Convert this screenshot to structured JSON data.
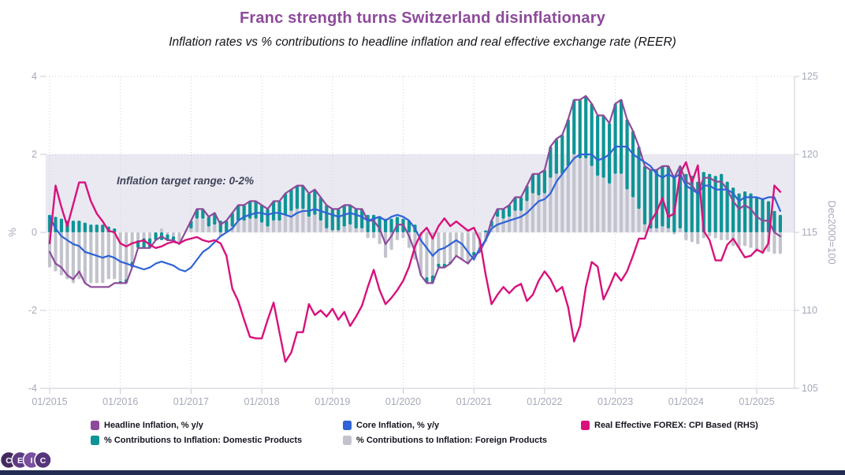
{
  "title": "Franc strength turns Switzerland disinflationary",
  "subtitle": "Inflation rates vs % contributions to headline inflation and real effective exchange rate (REER)",
  "annotation": "Inflation target range: 0-2%",
  "colors": {
    "title": "#8d4a9b",
    "band": "#eae9f1",
    "grid": "#cfd0da",
    "axis_line": "#c9cbd5",
    "tick_text": "#a6aab9",
    "footer": "#232c52",
    "headline": "#8d4a9b",
    "core": "#2f63d6",
    "domestic": "#0e9496",
    "foreign": "#c2c3cd",
    "forex": "#d8117c"
  },
  "legend": {
    "items": [
      {
        "label": "Headline Inflation, % y/y",
        "color": "#8d4a9b",
        "row": 0,
        "col": 0
      },
      {
        "label": "Core Inflation, % y/y",
        "color": "#2f63d6",
        "row": 0,
        "col": 1
      },
      {
        "label": "Real Effective FOREX: CPI Based (RHS)",
        "color": "#d8117c",
        "row": 0,
        "col": 2
      },
      {
        "label": "% Contributions to Inflation: Domestic Products",
        "color": "#0e9496",
        "row": 1,
        "col": 0
      },
      {
        "label": "% Contributions to Inflation: Foreign Products",
        "color": "#c2c3cd",
        "row": 1,
        "col": 1
      }
    ]
  },
  "logo": {
    "letters": [
      "C",
      "E",
      "I",
      "C"
    ],
    "circle_colors": [
      "#432a5e",
      "#5d3b85",
      "#7950a0",
      "#55357b"
    ]
  },
  "chart_data": {
    "type": "combo: stacked monthly bars + lines, dual y-axis",
    "x_start": "2015-01",
    "x_freq": "monthly",
    "x_points": 125,
    "x_tick_labels": [
      "01/2015",
      "01/2016",
      "01/2017",
      "01/2018",
      "01/2019",
      "01/2020",
      "01/2021",
      "01/2022",
      "01/2023",
      "01/2024",
      "01/2025"
    ],
    "x_tick_indices": [
      0,
      12,
      24,
      36,
      48,
      60,
      72,
      84,
      96,
      108,
      120
    ],
    "y_left": {
      "label": "%",
      "ticks": [
        4,
        2,
        0,
        -2,
        -4
      ],
      "range": [
        -4,
        4
      ],
      "grid": true
    },
    "y_right": {
      "label": "Dec2000=100",
      "ticks": [
        125,
        120,
        115,
        110,
        105
      ],
      "range": [
        105,
        125
      ]
    },
    "target_band": {
      "from": 0,
      "to": 2,
      "note": "Inflation target range: 0-2%"
    },
    "series": [
      {
        "name": "Headline Inflation, % y/y",
        "type": "line",
        "axis": "left",
        "color": "#8d4a9b",
        "values": [
          -0.5,
          -0.8,
          -0.9,
          -1.1,
          -1.2,
          -1.0,
          -1.3,
          -1.4,
          -1.4,
          -1.4,
          -1.4,
          -1.3,
          -1.3,
          -1.3,
          -0.9,
          -0.4,
          -0.4,
          -0.4,
          -0.2,
          -0.1,
          -0.2,
          -0.2,
          -0.3,
          0.0,
          0.3,
          0.6,
          0.6,
          0.4,
          0.5,
          0.2,
          0.3,
          0.5,
          0.7,
          0.7,
          0.8,
          0.8,
          0.7,
          0.6,
          0.8,
          0.8,
          1.0,
          1.1,
          1.2,
          1.2,
          1.0,
          1.1,
          0.9,
          0.7,
          0.6,
          0.6,
          0.7,
          0.7,
          0.6,
          0.6,
          0.3,
          0.3,
          0.1,
          -0.3,
          -0.1,
          0.2,
          0.2,
          -0.1,
          -0.5,
          -1.1,
          -1.3,
          -1.3,
          -0.9,
          -0.9,
          -0.8,
          -0.6,
          -0.7,
          -0.8,
          -0.6,
          -0.5,
          -0.2,
          0.3,
          0.6,
          0.6,
          0.7,
          0.9,
          0.9,
          1.2,
          1.5,
          1.5,
          1.6,
          2.2,
          2.4,
          2.5,
          2.9,
          3.4,
          3.4,
          3.5,
          3.3,
          3.0,
          3.0,
          2.8,
          3.3,
          3.4,
          2.9,
          2.6,
          2.2,
          1.7,
          1.6,
          1.6,
          1.7,
          1.7,
          1.4,
          1.7,
          1.3,
          1.2,
          1.0,
          1.4,
          1.4,
          1.3,
          1.3,
          1.1,
          0.8,
          0.6,
          0.7,
          0.6,
          0.4,
          0.3,
          0.3,
          0.0,
          -0.1
        ]
      },
      {
        "name": "Core Inflation, % y/y",
        "type": "line",
        "axis": "left",
        "color": "#2f63d6",
        "values": [
          0.4,
          0.1,
          -0.1,
          -0.2,
          -0.3,
          -0.35,
          -0.5,
          -0.55,
          -0.6,
          -0.65,
          -0.6,
          -0.65,
          -0.75,
          -0.8,
          -0.85,
          -0.9,
          -0.95,
          -0.9,
          -0.8,
          -0.75,
          -0.8,
          -0.85,
          -0.95,
          -1.0,
          -0.9,
          -0.7,
          -0.5,
          -0.4,
          -0.25,
          -0.1,
          0.0,
          0.1,
          0.3,
          0.4,
          0.45,
          0.5,
          0.5,
          0.45,
          0.5,
          0.5,
          0.45,
          0.4,
          0.5,
          0.55,
          0.55,
          0.6,
          0.55,
          0.5,
          0.45,
          0.4,
          0.45,
          0.5,
          0.45,
          0.4,
          0.3,
          0.35,
          0.4,
          0.3,
          0.4,
          0.45,
          0.4,
          0.3,
          0.1,
          -0.2,
          -0.4,
          -0.6,
          -0.45,
          -0.4,
          -0.3,
          -0.2,
          -0.3,
          -0.5,
          -0.7,
          -0.4,
          -0.2,
          0.1,
          0.2,
          0.25,
          0.3,
          0.35,
          0.4,
          0.5,
          0.65,
          0.8,
          0.85,
          1.0,
          1.3,
          1.5,
          1.7,
          1.9,
          2.0,
          2.0,
          2.0,
          1.85,
          1.9,
          2.0,
          2.2,
          2.2,
          2.2,
          2.0,
          1.9,
          1.8,
          1.7,
          1.5,
          1.4,
          1.5,
          1.4,
          1.5,
          1.2,
          1.1,
          1.0,
          1.2,
          1.2,
          1.1,
          1.1,
          1.1,
          1.0,
          0.8,
          0.9,
          0.9,
          0.9,
          0.85,
          0.9,
          0.9,
          0.55
        ]
      },
      {
        "name": "% Contributions to Inflation: Domestic Products",
        "type": "bar",
        "stack": "contributions",
        "axis": "left",
        "color": "#0e9496",
        "values": [
          0.45,
          0.4,
          0.35,
          0.3,
          0.3,
          0.3,
          0.25,
          0.2,
          0.2,
          0.2,
          0.15,
          0.1,
          -0.05,
          -0.1,
          -0.15,
          -0.2,
          -0.25,
          -0.25,
          -0.2,
          -0.2,
          -0.15,
          -0.1,
          -0.05,
          0.0,
          0.2,
          0.25,
          0.25,
          0.25,
          0.3,
          0.3,
          0.3,
          0.35,
          0.4,
          0.4,
          0.45,
          0.45,
          0.45,
          0.45,
          0.5,
          0.5,
          0.55,
          0.55,
          0.6,
          0.6,
          0.6,
          0.65,
          0.6,
          0.6,
          0.55,
          0.55,
          0.55,
          0.5,
          0.5,
          0.5,
          0.45,
          0.45,
          0.4,
          0.35,
          0.35,
          0.4,
          0.35,
          0.3,
          0.2,
          0.0,
          -0.15,
          -0.2,
          -0.1,
          -0.1,
          -0.05,
          0.0,
          0.0,
          -0.05,
          -0.1,
          0.0,
          0.05,
          0.15,
          0.2,
          0.25,
          0.3,
          0.35,
          0.35,
          0.4,
          0.5,
          0.55,
          0.6,
          0.8,
          0.9,
          1.0,
          1.2,
          1.4,
          1.5,
          1.6,
          1.6,
          1.55,
          1.6,
          1.55,
          1.8,
          1.9,
          1.8,
          1.7,
          1.6,
          1.5,
          1.5,
          1.5,
          1.55,
          1.6,
          1.45,
          1.6,
          1.5,
          1.45,
          1.3,
          1.55,
          1.5,
          1.45,
          1.5,
          1.3,
          1.15,
          1.0,
          1.05,
          1.0,
          0.9,
          0.85,
          0.8,
          0.55,
          0.45
        ]
      },
      {
        "name": "% Contributions to Inflation: Foreign Products",
        "type": "bar",
        "stack": "contributions",
        "axis": "left",
        "color": "#c2c3cd",
        "values": [
          -0.9,
          -1.0,
          -1.1,
          -1.2,
          -1.3,
          -1.2,
          -1.3,
          -1.3,
          -1.3,
          -1.3,
          -1.2,
          -1.2,
          -1.25,
          -1.2,
          -0.75,
          -0.2,
          -0.15,
          -0.15,
          0.0,
          0.1,
          -0.05,
          -0.1,
          -0.25,
          0.0,
          0.1,
          0.35,
          0.35,
          0.15,
          0.2,
          -0.1,
          0.0,
          0.15,
          0.3,
          0.3,
          0.35,
          0.35,
          0.25,
          0.15,
          0.3,
          0.3,
          0.45,
          0.55,
          0.6,
          0.6,
          0.4,
          0.45,
          0.3,
          0.1,
          0.05,
          0.05,
          0.15,
          0.2,
          0.1,
          0.1,
          -0.15,
          -0.15,
          -0.3,
          -0.65,
          -0.45,
          -0.2,
          -0.15,
          -0.4,
          -0.7,
          -1.1,
          -1.15,
          -1.1,
          -0.8,
          -0.8,
          -0.75,
          -0.6,
          -0.7,
          -0.75,
          -0.5,
          -0.5,
          -0.25,
          0.15,
          0.4,
          0.35,
          0.4,
          0.55,
          0.55,
          0.8,
          1.0,
          0.95,
          1.0,
          1.4,
          1.5,
          1.5,
          1.7,
          2.0,
          1.9,
          1.9,
          1.7,
          1.45,
          1.4,
          1.25,
          1.5,
          1.5,
          1.1,
          0.9,
          0.6,
          0.2,
          0.1,
          0.1,
          0.15,
          0.1,
          -0.05,
          0.1,
          -0.2,
          -0.25,
          -0.3,
          -0.15,
          -0.1,
          -0.15,
          -0.2,
          -0.2,
          -0.35,
          -0.4,
          -0.35,
          -0.4,
          -0.5,
          -0.55,
          -0.5,
          -0.55,
          -0.55
        ]
      },
      {
        "name": "Real Effective FOREX: CPI Based (RHS)",
        "type": "line",
        "axis": "right",
        "color": "#d8117c",
        "values": [
          114.3,
          118.0,
          116.6,
          115.4,
          116.8,
          118.2,
          118.2,
          117.0,
          116.2,
          115.7,
          115.1,
          115.0,
          114.3,
          114.1,
          114.3,
          114.4,
          114.5,
          114.2,
          114.0,
          114.1,
          114.3,
          114.4,
          114.3,
          114.5,
          114.6,
          114.7,
          114.5,
          114.4,
          114.5,
          114.3,
          113.5,
          111.4,
          110.6,
          109.4,
          108.3,
          108.2,
          108.2,
          109.4,
          110.5,
          108.6,
          106.7,
          107.3,
          108.6,
          108.6,
          110.4,
          109.7,
          110.0,
          109.6,
          110.1,
          109.4,
          109.9,
          109.0,
          109.6,
          110.3,
          111.5,
          112.6,
          111.3,
          110.4,
          110.8,
          111.3,
          111.9,
          112.8,
          114.1,
          114.9,
          115.3,
          114.6,
          115.4,
          115.9,
          115.4,
          115.7,
          115.4,
          115.1,
          115.3,
          114.5,
          112.3,
          110.4,
          111.0,
          111.5,
          111.1,
          111.5,
          111.7,
          110.6,
          111.0,
          111.9,
          112.5,
          112.0,
          111.2,
          111.5,
          110.2,
          108.0,
          109.0,
          111.5,
          113.1,
          112.8,
          110.7,
          111.5,
          112.4,
          111.9,
          112.5,
          113.5,
          114.6,
          114.6,
          115.7,
          116.3,
          117.2,
          116.0,
          116.2,
          118.8,
          119.5,
          118.2,
          119.3,
          115.1,
          114.5,
          113.2,
          113.2,
          114.2,
          114.6,
          114.0,
          113.4,
          113.5,
          113.9,
          113.7,
          114.3,
          118.0,
          117.6
        ]
      }
    ]
  }
}
